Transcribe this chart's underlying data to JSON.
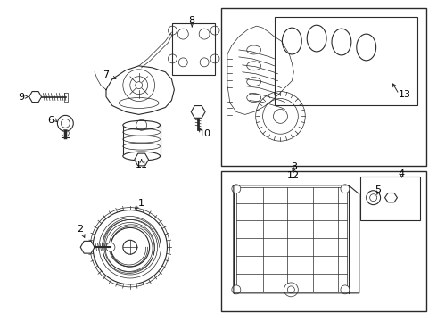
{
  "background_color": "#ffffff",
  "line_color": "#2a2a2a",
  "fig_width": 4.9,
  "fig_height": 3.6,
  "dpi": 100,
  "labels": {
    "1": [
      148,
      218,
      148,
      230
    ],
    "2": [
      96,
      258,
      96,
      270
    ],
    "3": [
      298,
      192,
      298,
      182
    ],
    "4": [
      450,
      192,
      450,
      182
    ],
    "5": [
      430,
      218,
      430,
      210
    ],
    "6": [
      55,
      138,
      65,
      138
    ],
    "7": [
      118,
      88,
      132,
      95
    ],
    "8": [
      210,
      28,
      210,
      38
    ],
    "9": [
      22,
      110,
      35,
      110
    ],
    "10": [
      222,
      155,
      222,
      147
    ],
    "11": [
      155,
      178,
      155,
      170
    ],
    "12": [
      330,
      195,
      330,
      185
    ],
    "13": [
      450,
      110,
      440,
      118
    ]
  }
}
